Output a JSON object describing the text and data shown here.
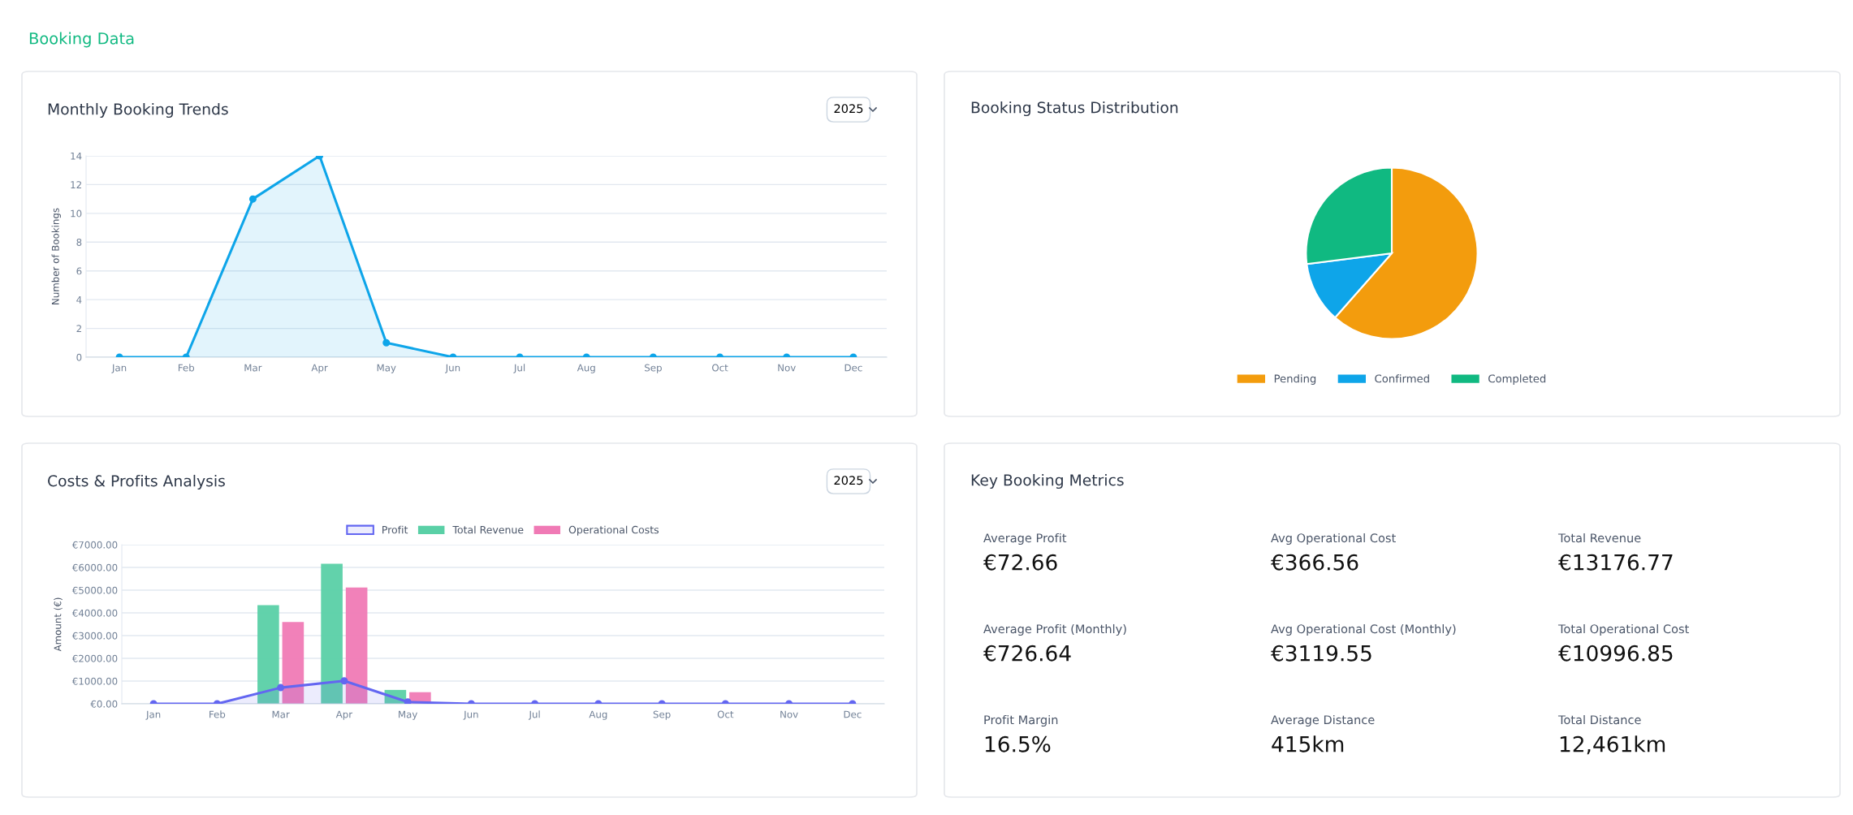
{
  "chart_data": [
    {
      "type": "area",
      "title": "Monthly Booking Trends",
      "subtitle": "2025",
      "ylabel": "Number of Bookings",
      "annotations": [
        "Booking Data"
      ],
      "categories": [
        "Jan",
        "Feb",
        "Mar",
        "Apr",
        "May",
        "Jun",
        "Jul",
        "Aug",
        "Sep",
        "Oct",
        "Nov",
        "Dec"
      ],
      "series": [
        {
          "color": "#0ea5e9",
          "values": [
            0,
            0,
            11,
            14,
            1,
            0,
            0,
            0,
            0,
            0,
            0,
            0
          ]
        }
      ],
      "ylim": [
        0,
        14
      ],
      "yticks": [
        0,
        2,
        4,
        6,
        8,
        10,
        12,
        14
      ],
      "grid": "y",
      "marker": "circle"
    },
    {
      "type": "pie",
      "title": "Booking Status Distribution",
      "legend": "bottom",
      "categories": [
        "Pending",
        "Confirmed",
        "Completed"
      ],
      "values": [
        61.5,
        11.5,
        27.0
      ],
      "colors": [
        "#f39c0d",
        "#0ea5e9",
        "#10b981"
      ]
    },
    {
      "type": "bar",
      "title": "Costs & Profits Analysis",
      "subtitle": "2025",
      "ylabel": "Amount (€)",
      "legend": "top",
      "categories": [
        "Jan",
        "Feb",
        "Mar",
        "Apr",
        "May",
        "Jun",
        "Jul",
        "Aug",
        "Sep",
        "Oct",
        "Nov",
        "Dec"
      ],
      "series": [
        {
          "name": "Profit",
          "type": "area",
          "color": "#6366f1",
          "values": [
            0,
            0,
            710,
            1010,
            80,
            0,
            0,
            0,
            0,
            0,
            0,
            0
          ]
        },
        {
          "name": "Total Revenue",
          "color": "#5ad0a6",
          "values": [
            0,
            0,
            4340,
            6160,
            610,
            0,
            0,
            0,
            0,
            0,
            0,
            0
          ]
        },
        {
          "name": "Operational Costs",
          "color": "#f07ab5",
          "values": [
            0,
            0,
            3600,
            5120,
            510,
            0,
            0,
            0,
            0,
            0,
            0,
            0
          ]
        }
      ],
      "ylim": [
        0,
        7000
      ],
      "yticks": [
        {
          "value": 0,
          "label": "€0.00"
        },
        {
          "value": 1000,
          "label": "€1000.00"
        },
        {
          "value": 2000,
          "label": "€2000.00"
        },
        {
          "value": 3000,
          "label": "€3000.00"
        },
        {
          "value": 4000,
          "label": "€4000.00"
        },
        {
          "value": 5000,
          "label": "€5000.00"
        },
        {
          "value": 6000,
          "label": "€6000.00"
        },
        {
          "value": 7000,
          "label": "€7000.00"
        }
      ],
      "grid": "y",
      "marker": "circle"
    },
    {
      "type": "other",
      "title": "Key Booking Metrics",
      "annotations": [
        "Average Profit",
        "€72.66",
        "Avg Operational Cost",
        "€366.56",
        "Total Revenue",
        "€13176.77",
        "Average Profit (Monthly)",
        "€726.64",
        "Avg Operational Cost (Monthly)",
        "€3119.55",
        "Total Operational Cost",
        "€10996.85",
        "Profit Margin",
        "16.5%",
        "Average Distance",
        "415km",
        "Total Distance",
        "12,461km"
      ]
    }
  ]
}
